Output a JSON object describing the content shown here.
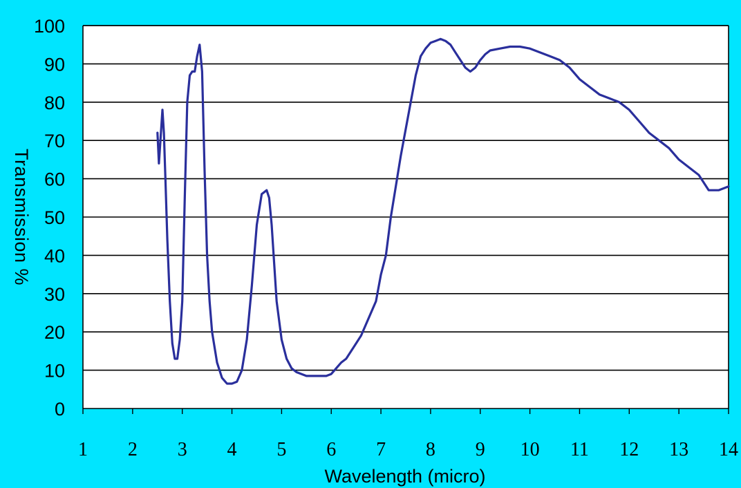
{
  "chart_data": {
    "type": "line",
    "title": "",
    "xlabel": "Wavelength (micro)",
    "ylabel": "Transmission %",
    "xlim": [
      1,
      14
    ],
    "ylim": [
      0,
      100
    ],
    "x_ticks": [
      "1",
      "2",
      "3",
      "4",
      "5",
      "6",
      "7",
      "8",
      "9",
      "10",
      "11",
      "12",
      "13",
      "14"
    ],
    "y_ticks": [
      "0",
      "10",
      "20",
      "30",
      "40",
      "50",
      "60",
      "70",
      "80",
      "90",
      "100"
    ],
    "grid": "horizontal",
    "legend": "none",
    "background_color": "#00e5ff",
    "plot_background": "#ffffff",
    "series": [
      {
        "color": "#2a2f9c",
        "x": [
          2.5,
          2.53,
          2.56,
          2.6,
          2.63,
          2.66,
          2.7,
          2.75,
          2.8,
          2.85,
          2.9,
          2.95,
          3.0,
          3.05,
          3.1,
          3.15,
          3.2,
          3.25,
          3.3,
          3.35,
          3.4,
          3.45,
          3.5,
          3.55,
          3.6,
          3.7,
          3.8,
          3.9,
          4.0,
          4.1,
          4.2,
          4.3,
          4.4,
          4.5,
          4.6,
          4.7,
          4.75,
          4.8,
          4.85,
          4.9,
          5.0,
          5.1,
          5.2,
          5.3,
          5.4,
          5.5,
          5.6,
          5.7,
          5.8,
          5.9,
          6.0,
          6.1,
          6.2,
          6.3,
          6.4,
          6.5,
          6.6,
          6.7,
          6.8,
          6.9,
          7.0,
          7.1,
          7.2,
          7.3,
          7.4,
          7.5,
          7.6,
          7.7,
          7.8,
          7.9,
          8.0,
          8.1,
          8.2,
          8.3,
          8.4,
          8.5,
          8.6,
          8.7,
          8.8,
          8.9,
          9.0,
          9.1,
          9.2,
          9.4,
          9.6,
          9.8,
          10.0,
          10.2,
          10.4,
          10.6,
          10.8,
          11.0,
          11.2,
          11.4,
          11.6,
          11.8,
          12.0,
          12.2,
          12.4,
          12.6,
          12.8,
          13.0,
          13.2,
          13.4,
          13.6,
          13.8,
          14.0
        ],
        "y": [
          72,
          64,
          70,
          78,
          72,
          60,
          44,
          28,
          17,
          13,
          13,
          18,
          28,
          55,
          80,
          87,
          88,
          88,
          92,
          95,
          88,
          62,
          40,
          28,
          20,
          12,
          8,
          6.5,
          6.5,
          7,
          10,
          18,
          32,
          48,
          56,
          57,
          55,
          48,
          38,
          28,
          18,
          13,
          10.5,
          9.5,
          9,
          8.5,
          8.5,
          8.5,
          8.5,
          8.5,
          9,
          10.5,
          12,
          13,
          15,
          17,
          19,
          22,
          25,
          28,
          35,
          40,
          50,
          58,
          66,
          73,
          80,
          87,
          92,
          94,
          95.5,
          96,
          96.5,
          96,
          95,
          93,
          91,
          89,
          88,
          89,
          91,
          92.5,
          93.5,
          94,
          94.5,
          94.5,
          94,
          93,
          92,
          91,
          89,
          86,
          84,
          82,
          81,
          80,
          78,
          75,
          72,
          70,
          68,
          65,
          63,
          61,
          57,
          57,
          58
        ]
      }
    ]
  }
}
